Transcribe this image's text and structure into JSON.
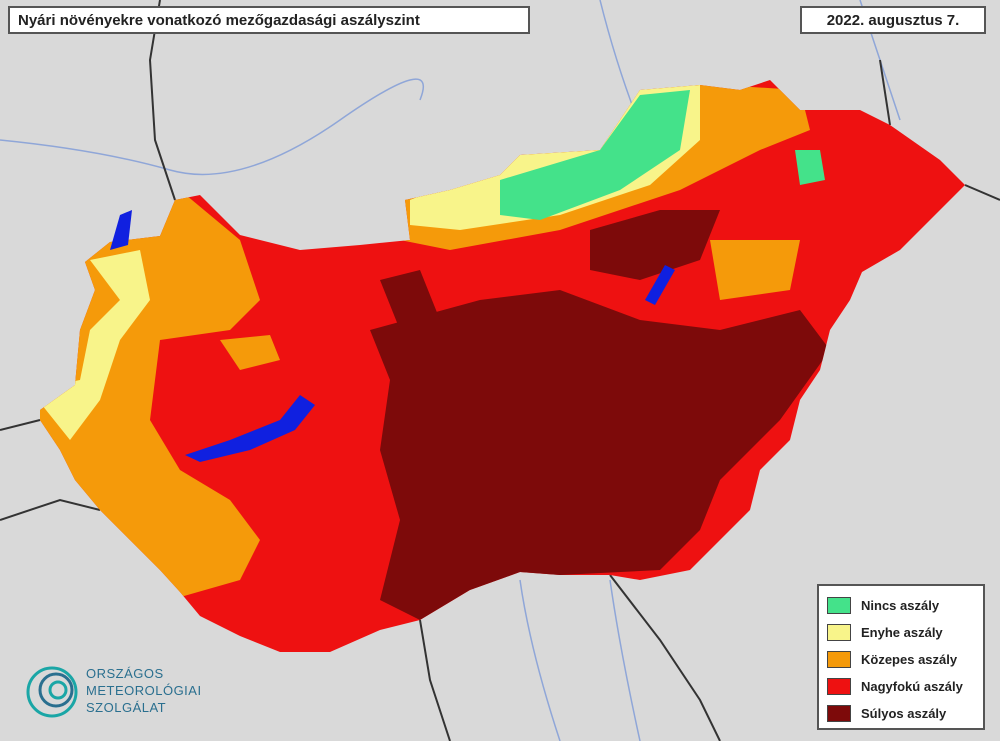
{
  "header": {
    "title": "Nyári növényekre vonatkozó mezőgazdasági aszályszint",
    "date": "2022. augusztus 7."
  },
  "legend": {
    "items": [
      {
        "label": "Nincs aszály",
        "color": "#44e28a"
      },
      {
        "label": "Enyhe aszály",
        "color": "#f8f48a"
      },
      {
        "label": "Közepes aszály",
        "color": "#f59a0a"
      },
      {
        "label": "Nagyfokú aszály",
        "color": "#ee1111"
      },
      {
        "label": "Súlyos aszály",
        "color": "#7d0a0a"
      }
    ]
  },
  "logo": {
    "lines": [
      "ORSZÁGOS",
      "METEOROLÓGIAI",
      "SZOLGÁLAT"
    ]
  }
}
